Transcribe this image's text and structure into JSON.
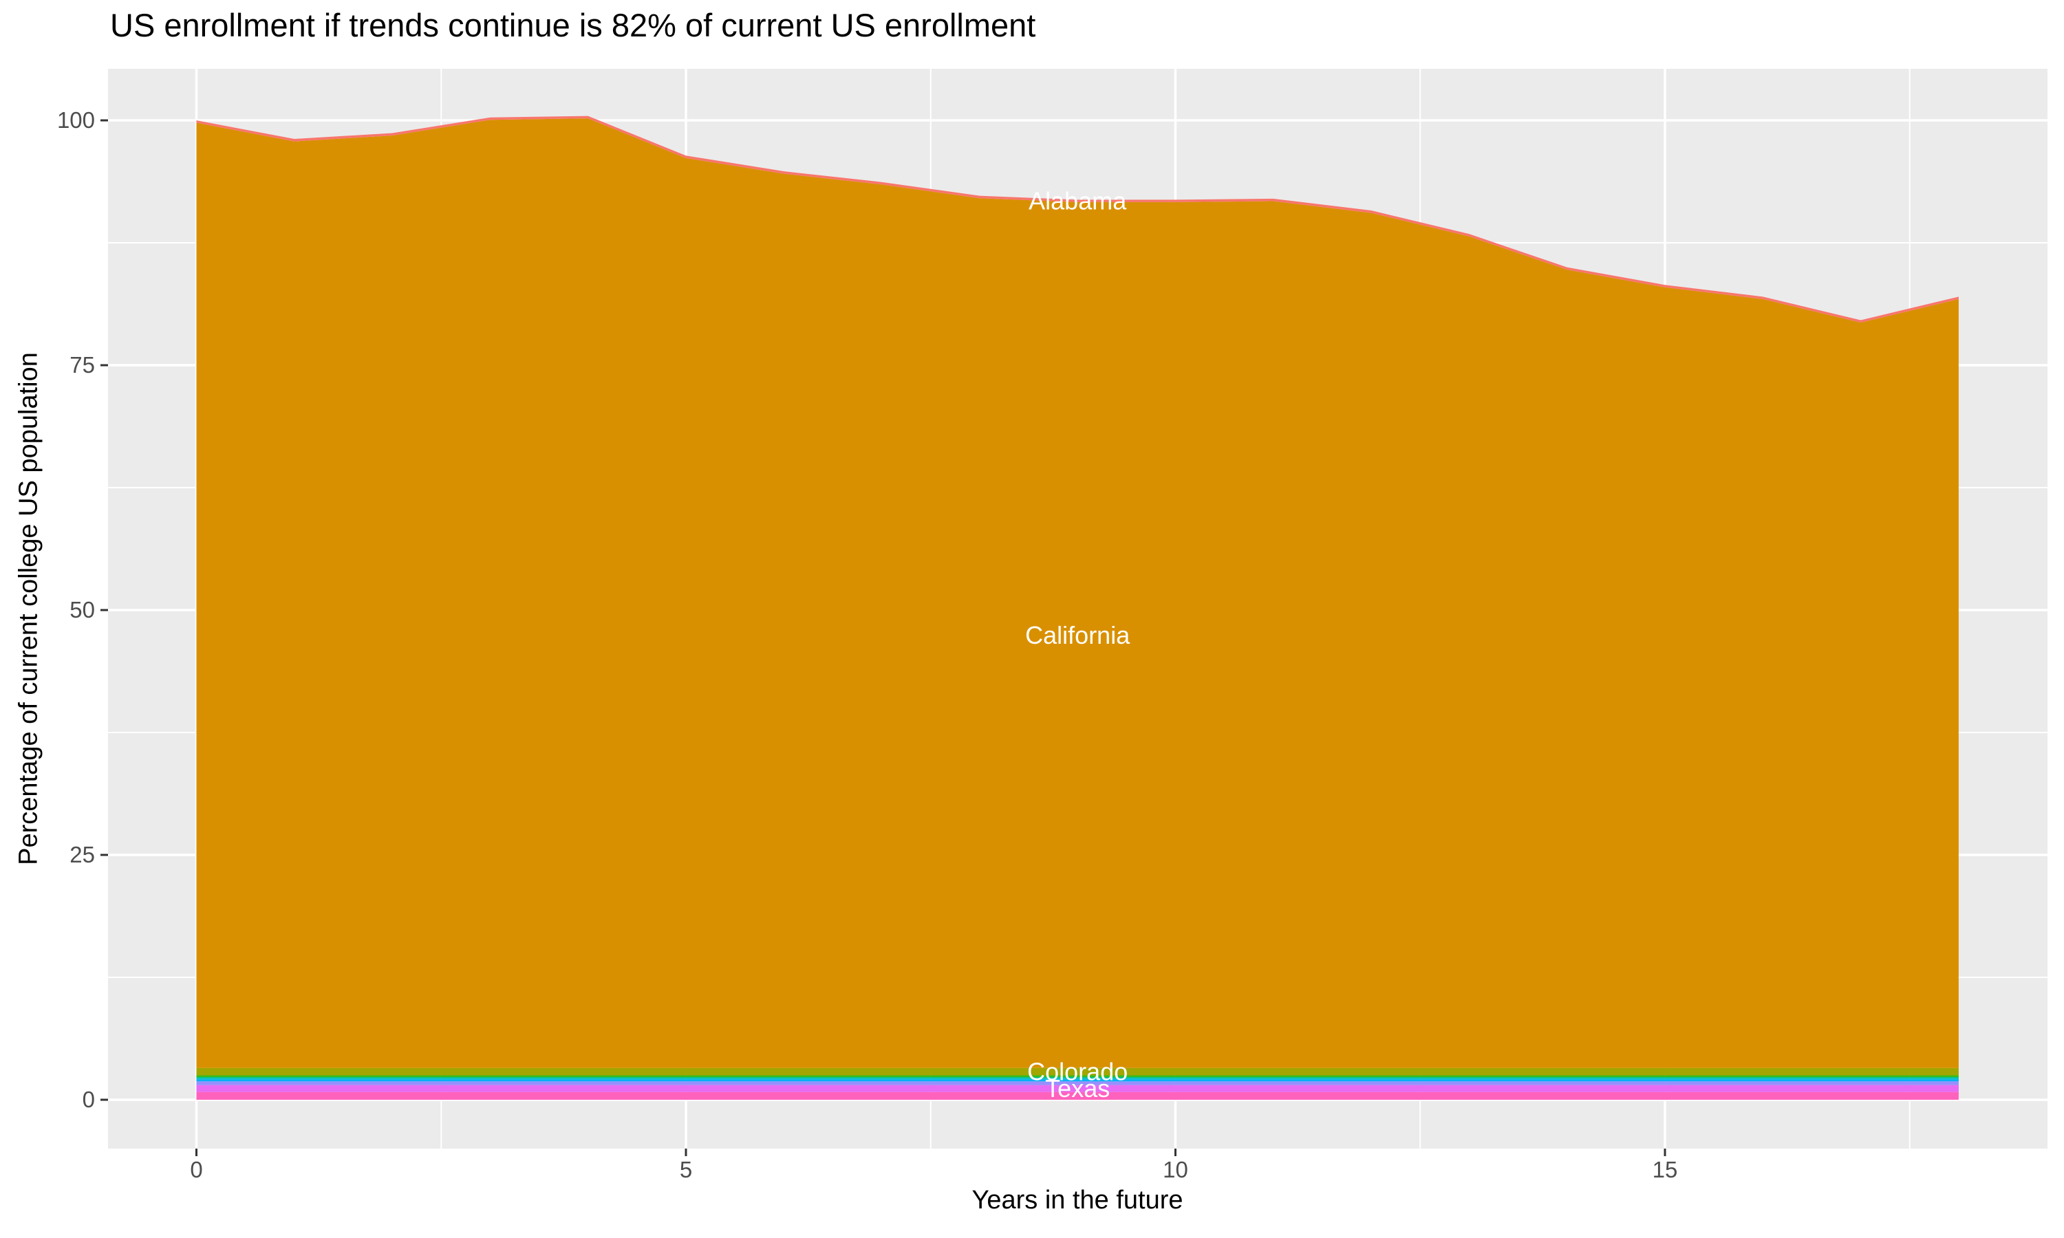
{
  "title": "US enrollment if trends continue is 82% of current US enrollment",
  "x_axis": {
    "title": "Years in the future",
    "tick_labels": [
      "0",
      "5",
      "10",
      "15"
    ],
    "tick_values": [
      0,
      5,
      10,
      15
    ],
    "minor_gridlines": [
      2.5,
      7.5,
      12.5,
      17.5
    ]
  },
  "y_axis": {
    "title": "Percentage of current college US population",
    "tick_labels": [
      "0",
      "25",
      "50",
      "75",
      "100"
    ],
    "tick_values": [
      0,
      25,
      50,
      75,
      100
    ],
    "minor_gridlines": [
      12.5,
      37.5,
      62.5,
      87.5
    ]
  },
  "colors": {
    "page_background": "#FFFFFF",
    "panel_background": "#EBEBEB",
    "gridline": "#FFFFFF",
    "tick_mark": "#333333",
    "axis_text": "#4D4D4D",
    "title_text": "#000000",
    "area_label_text": "#FFFFFF"
  },
  "chart_data": {
    "type": "area",
    "stacked": true,
    "title": "US enrollment if trends continue is 82% of current US enrollment",
    "xlabel": "Years in the future",
    "ylabel": "Percentage of current college US population",
    "x": [
      0,
      1,
      2,
      3,
      4,
      5,
      6,
      7,
      8,
      9,
      10,
      11,
      12,
      13,
      14,
      15,
      16,
      17,
      18
    ],
    "xlim": [
      0,
      18
    ],
    "ylim": [
      0,
      100
    ],
    "grid": "white major and minor gridlines on gray panel",
    "legend": "none",
    "label_year": 9,
    "series_bottom_to_top": [
      {
        "name": "unlabeled-pink-band",
        "label": "",
        "color": "#FF62BC",
        "constant": 0.79
      },
      {
        "name": "Texas",
        "label": "Texas",
        "color": "#E76BF3",
        "constant": 0.71
      },
      {
        "name": "unlabeled-periwinkle-band",
        "label": "",
        "color": "#9590FF",
        "constant": 0.38
      },
      {
        "name": "unlabeled-blue-band",
        "label": "",
        "color": "#00B0F6",
        "constant": 0.2
      },
      {
        "name": "unlabeled-cyan-band",
        "label": "",
        "color": "#00BFC4",
        "constant": 0.15
      },
      {
        "name": "unlabeled-teal-band",
        "label": "",
        "color": "#00BF7D",
        "constant": 0.11
      },
      {
        "name": "unlabeled-green-band",
        "label": "",
        "color": "#39B600",
        "constant": 0.17
      },
      {
        "name": "Colorado",
        "label": "Colorado",
        "color": "#A3A500",
        "constant": 0.74
      },
      {
        "name": "California",
        "label": "California",
        "color": "#D89000",
        "values": [
          96.5,
          94.6,
          95.2,
          96.8,
          96.95,
          92.9,
          91.3,
          90.2,
          88.8,
          88.4,
          88.4,
          88.5,
          87.3,
          84.9,
          81.5,
          79.7,
          78.5,
          76.1,
          78.5
        ]
      },
      {
        "name": "Alabama",
        "label": "Alabama",
        "color": "#F8766D",
        "constant": 0.25
      }
    ],
    "stack_totals": [
      100.0,
      98.1,
      98.7,
      100.3,
      100.45,
      96.4,
      94.8,
      93.7,
      92.3,
      91.9,
      91.9,
      92.0,
      90.8,
      88.4,
      85.0,
      83.2,
      82.0,
      79.6,
      82.0
    ]
  }
}
